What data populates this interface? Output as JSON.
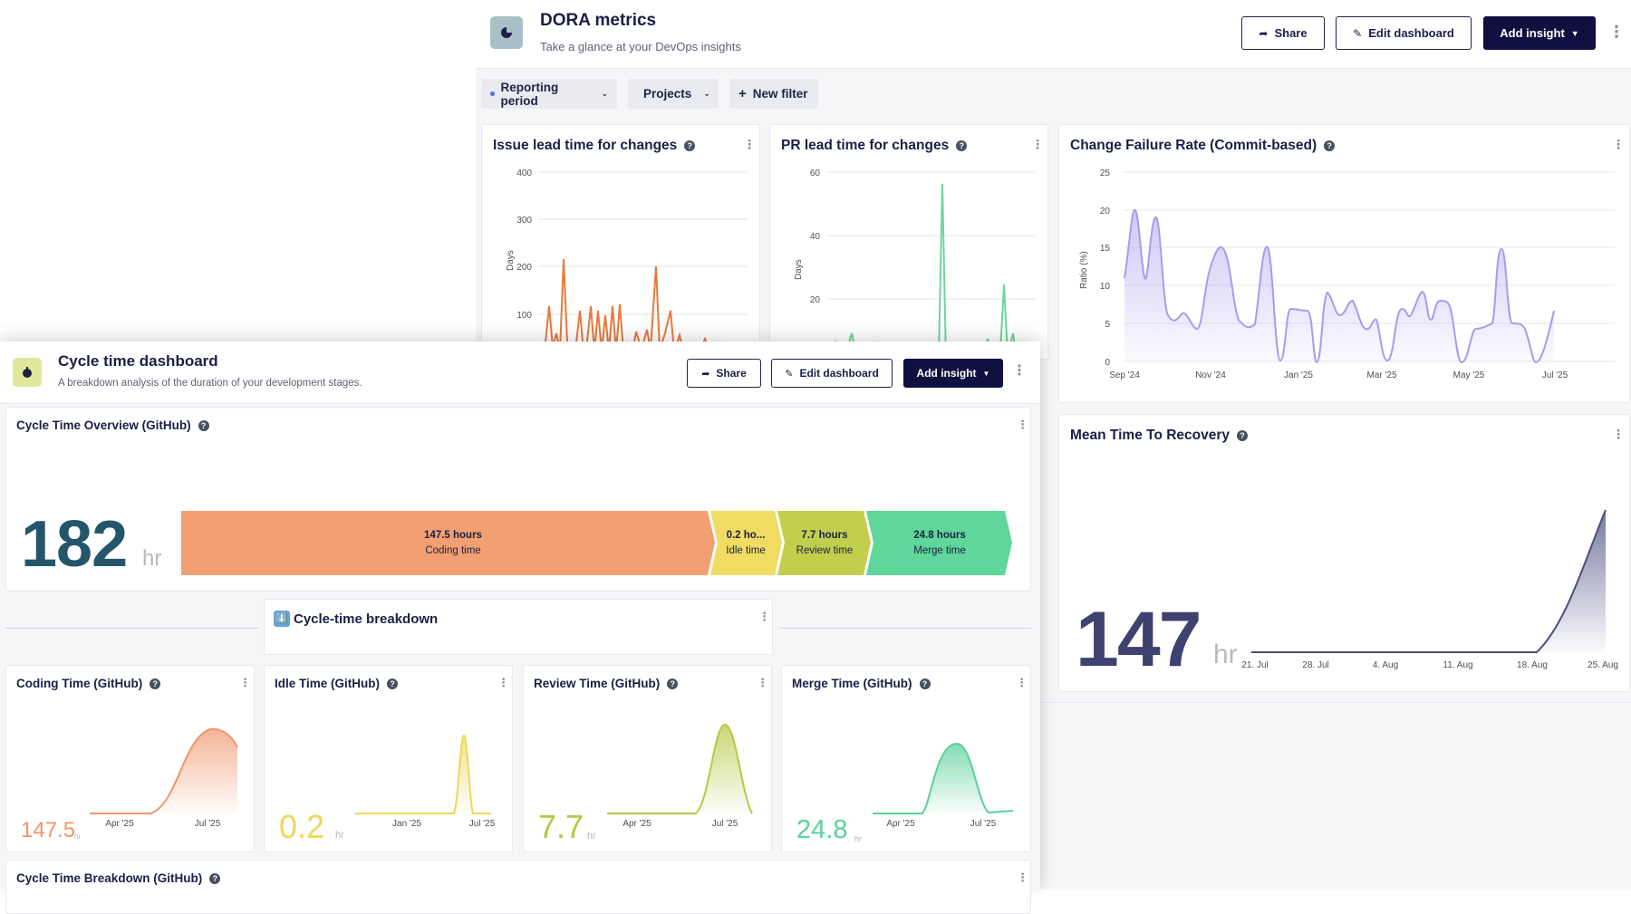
{
  "dora": {
    "title": "DORA metrics",
    "subtitle": "Take a glance at your DevOps insights",
    "share_label": "Share",
    "edit_label": "Edit dashboard",
    "add_insight_label": "Add insight",
    "filters": [
      {
        "label": "Reporting period",
        "dot_color": "#4a78e8"
      },
      {
        "label": "Projects",
        "dot_color": "#9aa0ad"
      }
    ],
    "new_filter_label": "New filter",
    "issue_lead": {
      "title": "Issue lead time for changes",
      "ylabel": "Days",
      "yticks": [
        "400",
        "300",
        "200",
        "100"
      ],
      "color": "#e8793b"
    },
    "pr_lead": {
      "title": "PR lead time for changes",
      "ylabel": "Days",
      "yticks": [
        "60",
        "40",
        "20"
      ],
      "color": "#6fd4a0"
    },
    "cfr": {
      "title": "Change Failure Rate (Commit-based)",
      "ylabel": "Ratio (%)",
      "yticks": [
        "25",
        "20",
        "15",
        "10",
        "5",
        "0"
      ],
      "xticks": [
        "Sep '24",
        "Nov '24",
        "Jan '25",
        "Mar '25",
        "May '25",
        "Jul '25"
      ],
      "color": "#a89bf0"
    },
    "mttr": {
      "title": "Mean Time To Recovery",
      "value": "147",
      "unit": "hr",
      "xticks": [
        "21. Jul",
        "28. Jul",
        "4. Aug",
        "11. Aug",
        "18. Aug",
        "25. Aug"
      ],
      "color": "#4b4d80"
    }
  },
  "cycle": {
    "title": "Cycle time dashboard",
    "subtitle": "A breakdown analysis of the duration of your development stages.",
    "share_label": "Share",
    "edit_label": "Edit dashboard",
    "add_insight_label": "Add insight",
    "overview": {
      "title": "Cycle Time Overview (GitHub)",
      "value": "182",
      "unit": "hr",
      "segments": [
        {
          "value": "147.5 hours",
          "label": "Coding time",
          "color": "#f2a072"
        },
        {
          "value": "0.2 ho...",
          "label": "Idle time",
          "color": "#f0dc62"
        },
        {
          "value": "7.7 hours",
          "label": "Review time",
          "color": "#c2cf4d"
        },
        {
          "value": "24.8 hours",
          "label": "Merge time",
          "color": "#5fd69a"
        }
      ]
    },
    "breakdown_header": {
      "emoji": "⬇️",
      "title": "Cycle-time breakdown"
    },
    "small_cards": [
      {
        "title": "Coding Time (GitHub)",
        "value": "147.5",
        "unit": "hr",
        "color": "#f0956a",
        "xticks": [
          "Apr '25",
          "Jul '25"
        ]
      },
      {
        "title": "Idle Time (GitHub)",
        "value": "0.2",
        "unit": "hr",
        "color": "#ecd85a",
        "xticks": [
          "Jan '25",
          "Jul '25"
        ]
      },
      {
        "title": "Review Time (GitHub)",
        "value": "7.7",
        "unit": "hr",
        "color": "#b7c844",
        "xticks": [
          "Apr '25",
          "Jul '25"
        ]
      },
      {
        "title": "Merge Time (GitHub)",
        "value": "24.8",
        "unit": "hr",
        "color": "#5ad19a",
        "xticks": [
          "Apr '25",
          "Jul '25"
        ]
      }
    ],
    "breakdown_table": {
      "title": "Cycle Time Breakdown (GitHub)"
    }
  }
}
